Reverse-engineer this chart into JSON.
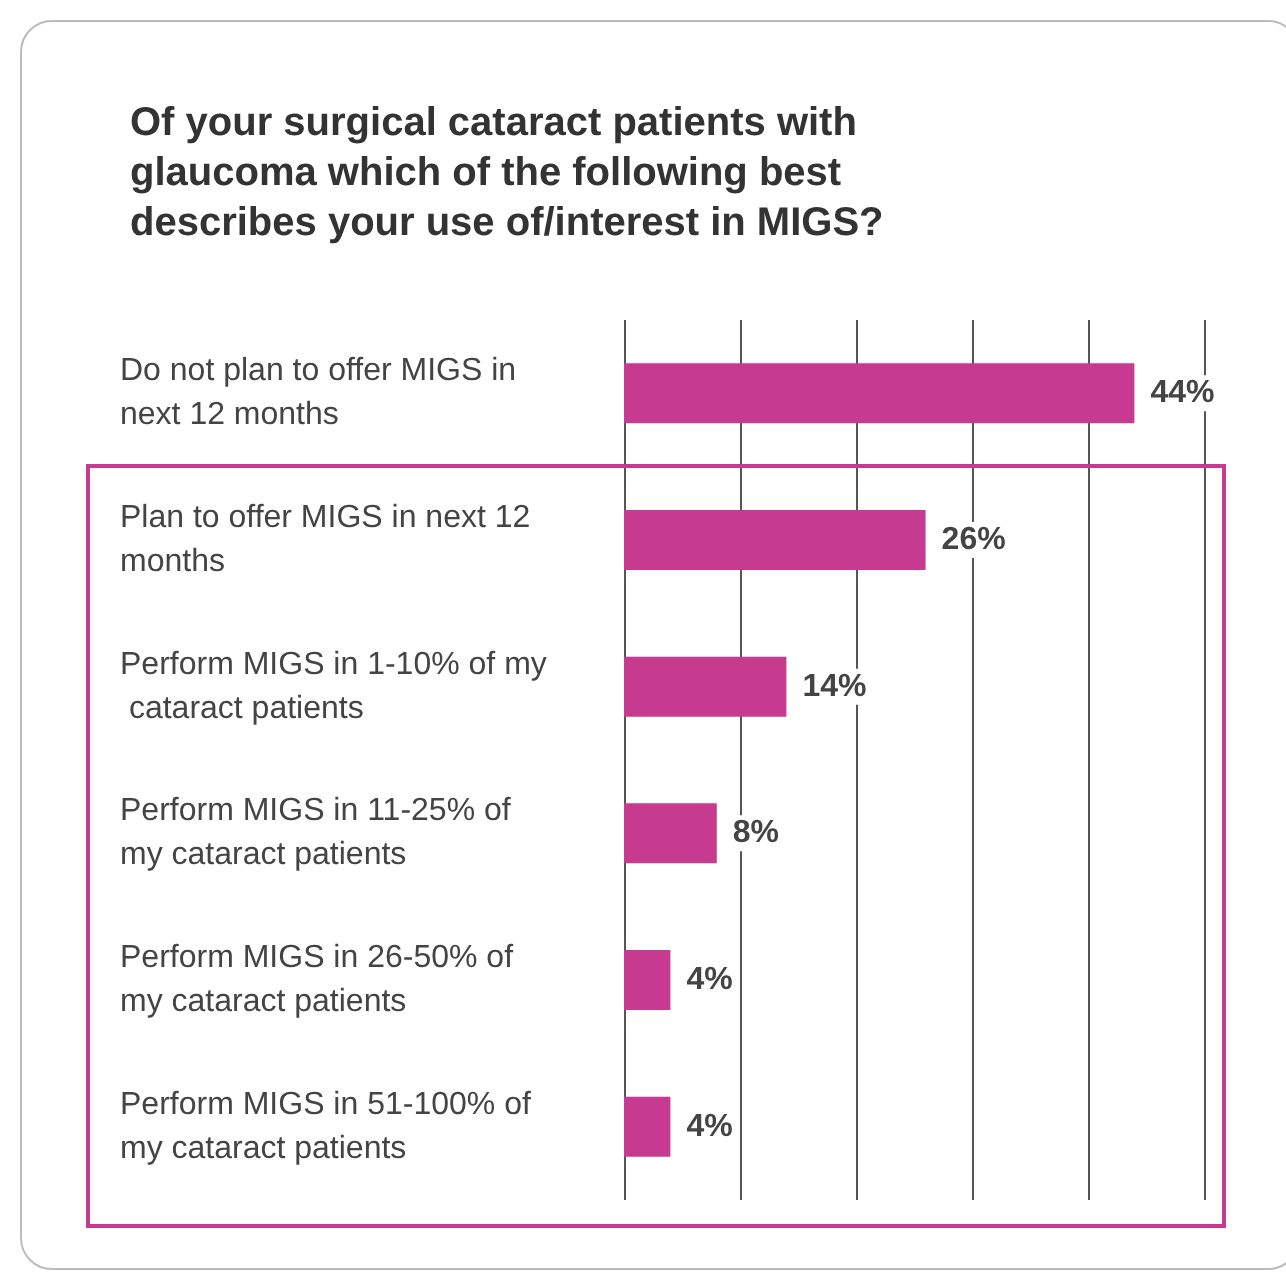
{
  "chart_data": {
    "type": "bar",
    "orientation": "horizontal",
    "title": "Of your surgical cataract patients with glaucoma which of the following best describes your use of/interest in MIGS?",
    "categories": [
      "Do not plan to offer MIGS in next 12 months",
      "Plan to offer MIGS in next 12 months",
      "Perform MIGS in 1-10% of my cataract patients",
      "Perform MIGS in 11-25% of my cataract patients",
      "Perform MIGS in 26-50% of my cataract patients",
      "Perform MIGS in 51-100% of my cataract patients"
    ],
    "values": [
      44,
      26,
      14,
      8,
      4,
      4
    ],
    "value_labels": [
      "44%",
      "26%",
      "14%",
      "8%",
      "4%",
      "4%"
    ],
    "color": "#c63b8f",
    "xlim": [
      0,
      50
    ],
    "xticks": [
      {
        "value": 0,
        "label": null
      },
      {
        "value": 10,
        "label": null
      },
      {
        "value": 20,
        "label": null
      },
      {
        "value": 30,
        "label": null
      },
      {
        "value": 40,
        "label": null
      },
      {
        "value": 50,
        "label": null
      }
    ],
    "tick_labels": false,
    "grid": "x"
  }
}
